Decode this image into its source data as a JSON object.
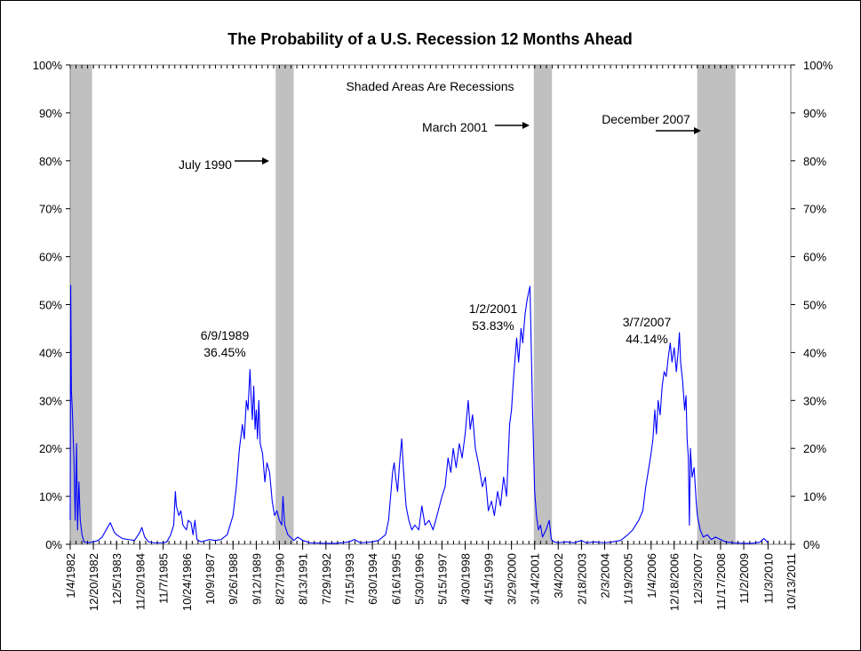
{
  "chart_data": {
    "type": "line",
    "title": "The Probability of a U.S. Recession 12 Months Ahead",
    "xlabel": "",
    "ylabel": "",
    "x_range": [
      "1982-01-04",
      "2011-10-13"
    ],
    "ylim": [
      0,
      100
    ],
    "y_ticks": [
      "0%",
      "10%",
      "20%",
      "30%",
      "40%",
      "50%",
      "60%",
      "70%",
      "80%",
      "90%",
      "100%"
    ],
    "x_ticks": [
      {
        "label": "1/4/1982",
        "date": "1982-01-04"
      },
      {
        "label": "12/20/1982",
        "date": "1982-12-20"
      },
      {
        "label": "12/5/1983",
        "date": "1983-12-05"
      },
      {
        "label": "11/20/1984",
        "date": "1984-11-20"
      },
      {
        "label": "11/7/1985",
        "date": "1985-11-07"
      },
      {
        "label": "10/24/1986",
        "date": "1986-10-24"
      },
      {
        "label": "10/9/1987",
        "date": "1987-10-09"
      },
      {
        "label": "9/26/1988",
        "date": "1988-09-26"
      },
      {
        "label": "9/12/1989",
        "date": "1989-09-12"
      },
      {
        "label": "8/27/1990",
        "date": "1990-08-27"
      },
      {
        "label": "8/13/1991",
        "date": "1991-08-13"
      },
      {
        "label": "7/29/1992",
        "date": "1992-07-29"
      },
      {
        "label": "7/15/1993",
        "date": "1993-07-15"
      },
      {
        "label": "6/30/1994",
        "date": "1994-06-30"
      },
      {
        "label": "6/16/1995",
        "date": "1995-06-16"
      },
      {
        "label": "5/30/1996",
        "date": "1996-05-30"
      },
      {
        "label": "5/15/1997",
        "date": "1997-05-15"
      },
      {
        "label": "4/30/1998",
        "date": "1998-04-30"
      },
      {
        "label": "4/15/1999",
        "date": "1999-04-15"
      },
      {
        "label": "3/29/2000",
        "date": "2000-03-29"
      },
      {
        "label": "3/14/2001",
        "date": "2001-03-14"
      },
      {
        "label": "3/4/2002",
        "date": "2002-03-04"
      },
      {
        "label": "2/18/2003",
        "date": "2003-02-18"
      },
      {
        "label": "2/3/2004",
        "date": "2004-02-03"
      },
      {
        "label": "1/19/2005",
        "date": "2005-01-19"
      },
      {
        "label": "1/4/2006",
        "date": "2006-01-04"
      },
      {
        "label": "12/18/2006",
        "date": "2006-12-18"
      },
      {
        "label": "12/3/2007",
        "date": "2007-12-03"
      },
      {
        "label": "11/17/2008",
        "date": "2008-11-17"
      },
      {
        "label": "11/2/2009",
        "date": "2009-11-02"
      },
      {
        "label": "11/3/2010",
        "date": "2010-11-03"
      },
      {
        "label": "10/13/2011",
        "date": "2011-10-13"
      }
    ],
    "recessions": [
      {
        "start": "1982-01-04",
        "end": "1982-11-30"
      },
      {
        "start": "1990-07-01",
        "end": "1991-03-31"
      },
      {
        "start": "2001-03-01",
        "end": "2001-11-30"
      },
      {
        "start": "2007-12-01",
        "end": "2009-06-30"
      }
    ],
    "series": [
      {
        "color": "#0000ff",
        "points": [
          [
            "1982-01-04",
            5
          ],
          [
            "1982-01-12",
            54
          ],
          [
            "1982-01-22",
            32
          ],
          [
            "1982-02-05",
            28
          ],
          [
            "1982-03-01",
            18
          ],
          [
            "1982-03-20",
            5
          ],
          [
            "1982-04-10",
            21
          ],
          [
            "1982-04-25",
            3
          ],
          [
            "1982-05-15",
            13
          ],
          [
            "1982-06-05",
            5
          ],
          [
            "1982-07-01",
            2
          ],
          [
            "1982-08-01",
            0.5
          ],
          [
            "1982-10-01",
            0.3
          ],
          [
            "1982-12-20",
            0.5
          ],
          [
            "1983-03-01",
            0.8
          ],
          [
            "1983-05-01",
            1.5
          ],
          [
            "1983-07-01",
            3
          ],
          [
            "1983-09-01",
            4.5
          ],
          [
            "1983-11-01",
            2.5
          ],
          [
            "1983-12-05",
            2
          ],
          [
            "1984-03-01",
            1.2
          ],
          [
            "1984-06-01",
            1
          ],
          [
            "1984-09-01",
            0.8
          ],
          [
            "1984-11-20",
            2.5
          ],
          [
            "1984-12-20",
            3.5
          ],
          [
            "1985-02-01",
            1.5
          ],
          [
            "1985-04-01",
            0.5
          ],
          [
            "1985-07-01",
            0.3
          ],
          [
            "1985-11-07",
            0.3
          ],
          [
            "1986-01-01",
            0.5
          ],
          [
            "1986-03-01",
            2
          ],
          [
            "1986-04-15",
            4
          ],
          [
            "1986-05-10",
            11
          ],
          [
            "1986-05-25",
            8
          ],
          [
            "1986-07-01",
            6
          ],
          [
            "1986-08-01",
            7
          ],
          [
            "1986-09-01",
            4
          ],
          [
            "1986-10-24",
            3
          ],
          [
            "1986-11-20",
            5
          ],
          [
            "1987-01-01",
            4.5
          ],
          [
            "1987-02-01",
            2
          ],
          [
            "1987-03-01",
            5
          ],
          [
            "1987-04-01",
            1
          ],
          [
            "1987-06-01",
            0.5
          ],
          [
            "1987-10-09",
            1
          ],
          [
            "1988-01-01",
            0.8
          ],
          [
            "1988-04-01",
            1
          ],
          [
            "1988-07-01",
            2
          ],
          [
            "1988-09-26",
            6
          ],
          [
            "1988-11-15",
            12
          ],
          [
            "1989-01-01",
            20
          ],
          [
            "1989-02-15",
            25
          ],
          [
            "1989-03-15",
            22
          ],
          [
            "1989-04-15",
            30
          ],
          [
            "1989-05-10",
            28
          ],
          [
            "1989-06-09",
            36.45
          ],
          [
            "1989-06-25",
            31
          ],
          [
            "1989-07-15",
            26
          ],
          [
            "1989-08-05",
            33
          ],
          [
            "1989-08-25",
            24
          ],
          [
            "1989-09-12",
            28
          ],
          [
            "1989-10-01",
            22
          ],
          [
            "1989-10-20",
            30
          ],
          [
            "1989-11-10",
            21
          ],
          [
            "1989-12-15",
            19
          ],
          [
            "1990-01-20",
            13
          ],
          [
            "1990-02-20",
            17
          ],
          [
            "1990-04-01",
            15
          ],
          [
            "1990-05-10",
            9
          ],
          [
            "1990-06-15",
            6
          ],
          [
            "1990-07-20",
            7
          ],
          [
            "1990-08-27",
            5
          ],
          [
            "1990-10-01",
            4
          ],
          [
            "1990-10-20",
            10
          ],
          [
            "1990-11-15",
            4
          ],
          [
            "1991-01-01",
            2
          ],
          [
            "1991-04-01",
            0.8
          ],
          [
            "1991-06-01",
            1.5
          ],
          [
            "1991-08-13",
            0.8
          ],
          [
            "1991-12-01",
            0.3
          ],
          [
            "1992-07-29",
            0.2
          ],
          [
            "1993-01-01",
            0.2
          ],
          [
            "1993-07-15",
            0.5
          ],
          [
            "1993-10-01",
            1
          ],
          [
            "1994-01-01",
            0.3
          ],
          [
            "1994-06-30",
            0.5
          ],
          [
            "1994-10-01",
            0.8
          ],
          [
            "1995-01-15",
            2
          ],
          [
            "1995-03-01",
            5
          ],
          [
            "1995-04-01",
            10
          ],
          [
            "1995-05-01",
            15
          ],
          [
            "1995-05-25",
            17
          ],
          [
            "1995-06-16",
            14
          ],
          [
            "1995-07-15",
            11
          ],
          [
            "1995-08-15",
            17
          ],
          [
            "1995-09-15",
            22
          ],
          [
            "1995-10-15",
            15
          ],
          [
            "1995-11-20",
            8
          ],
          [
            "1996-01-01",
            5
          ],
          [
            "1996-02-15",
            3
          ],
          [
            "1996-04-01",
            4
          ],
          [
            "1996-05-30",
            3
          ],
          [
            "1996-07-15",
            8
          ],
          [
            "1996-09-01",
            4
          ],
          [
            "1996-11-01",
            5
          ],
          [
            "1997-01-01",
            3
          ],
          [
            "1997-03-01",
            6
          ],
          [
            "1997-05-15",
            10
          ],
          [
            "1997-07-01",
            12
          ],
          [
            "1997-08-15",
            18
          ],
          [
            "1997-09-25",
            15
          ],
          [
            "1997-11-01",
            20
          ],
          [
            "1997-12-15",
            16
          ],
          [
            "1998-02-01",
            21
          ],
          [
            "1998-03-15",
            18
          ],
          [
            "1998-04-30",
            23
          ],
          [
            "1998-06-15",
            30
          ],
          [
            "1998-07-15",
            24
          ],
          [
            "1998-08-20",
            27
          ],
          [
            "1998-10-01",
            20
          ],
          [
            "1998-11-15",
            17
          ],
          [
            "1999-01-15",
            12
          ],
          [
            "1999-03-01",
            14
          ],
          [
            "1999-04-15",
            7
          ],
          [
            "1999-06-01",
            9
          ],
          [
            "1999-07-15",
            6
          ],
          [
            "1999-09-01",
            11
          ],
          [
            "1999-10-15",
            8
          ],
          [
            "1999-12-01",
            14
          ],
          [
            "2000-01-15",
            10
          ],
          [
            "2000-03-01",
            25
          ],
          [
            "2000-03-29",
            28
          ],
          [
            "2000-05-01",
            35
          ],
          [
            "2000-06-15",
            43
          ],
          [
            "2000-07-15",
            38
          ],
          [
            "2000-08-20",
            45
          ],
          [
            "2000-09-15",
            42
          ],
          [
            "2000-10-20",
            48
          ],
          [
            "2000-11-20",
            51
          ],
          [
            "2001-01-02",
            53.83
          ],
          [
            "2001-01-20",
            42
          ],
          [
            "2001-02-10",
            28
          ],
          [
            "2001-02-25",
            20
          ],
          [
            "2001-03-14",
            11
          ],
          [
            "2001-04-10",
            6
          ],
          [
            "2001-05-10",
            3
          ],
          [
            "2001-06-10",
            4
          ],
          [
            "2001-07-10",
            1.5
          ],
          [
            "2001-09-01",
            3
          ],
          [
            "2001-10-20",
            5
          ],
          [
            "2001-11-20",
            1
          ],
          [
            "2002-01-01",
            0.5
          ],
          [
            "2002-03-04",
            0.3
          ],
          [
            "2002-07-01",
            0.5
          ],
          [
            "2002-11-01",
            0.3
          ],
          [
            "2003-02-18",
            0.8
          ],
          [
            "2003-05-01",
            0.3
          ],
          [
            "2003-09-01",
            0.5
          ],
          [
            "2004-02-03",
            0.3
          ],
          [
            "2004-06-01",
            0.5
          ],
          [
            "2004-10-01",
            0.8
          ],
          [
            "2005-01-19",
            2
          ],
          [
            "2005-04-01",
            3
          ],
          [
            "2005-07-01",
            5
          ],
          [
            "2005-09-01",
            7
          ],
          [
            "2005-10-15",
            12
          ],
          [
            "2005-12-01",
            16
          ],
          [
            "2006-01-04",
            19
          ],
          [
            "2006-02-01",
            22
          ],
          [
            "2006-03-01",
            28
          ],
          [
            "2006-03-25",
            23
          ],
          [
            "2006-04-20",
            30
          ],
          [
            "2006-05-20",
            27
          ],
          [
            "2006-06-20",
            33
          ],
          [
            "2006-07-20",
            36
          ],
          [
            "2006-08-20",
            35
          ],
          [
            "2006-09-20",
            39
          ],
          [
            "2006-10-20",
            42
          ],
          [
            "2006-11-15",
            38
          ],
          [
            "2006-12-18",
            41
          ],
          [
            "2007-01-20",
            36
          ],
          [
            "2007-02-15",
            40
          ],
          [
            "2007-03-07",
            44.14
          ],
          [
            "2007-03-25",
            38
          ],
          [
            "2007-04-25",
            34
          ],
          [
            "2007-05-25",
            28
          ],
          [
            "2007-06-15",
            31
          ],
          [
            "2007-07-01",
            22
          ],
          [
            "2007-07-20",
            18
          ],
          [
            "2007-08-05",
            4
          ],
          [
            "2007-08-20",
            20
          ],
          [
            "2007-09-15",
            14
          ],
          [
            "2007-10-15",
            16
          ],
          [
            "2007-11-15",
            9
          ],
          [
            "2007-12-03",
            6
          ],
          [
            "2008-01-15",
            3
          ],
          [
            "2008-03-01",
            1.5
          ],
          [
            "2008-05-01",
            2
          ],
          [
            "2008-07-01",
            1
          ],
          [
            "2008-09-01",
            1.5
          ],
          [
            "2008-11-17",
            1
          ],
          [
            "2009-02-01",
            0.5
          ],
          [
            "2009-06-01",
            0.3
          ],
          [
            "2009-11-02",
            0.2
          ],
          [
            "2010-03-01",
            0.2
          ],
          [
            "2010-07-01",
            0.4
          ],
          [
            "2010-09-01",
            1.2
          ],
          [
            "2010-10-01",
            0.8
          ],
          [
            "2010-11-03",
            0.3
          ]
        ]
      }
    ],
    "annotations": [
      {
        "text": "Shaded Areas Are Recessions"
      },
      {
        "text": "July 1990"
      },
      {
        "text": "March 2001"
      },
      {
        "text": "December 2007"
      },
      {
        "text": "6/9/1989"
      },
      {
        "text": "36.45%"
      },
      {
        "text": "1/2/2001"
      },
      {
        "text": "53.83%"
      },
      {
        "text": "3/7/2007"
      },
      {
        "text": "44.14%"
      }
    ],
    "grid": false
  }
}
